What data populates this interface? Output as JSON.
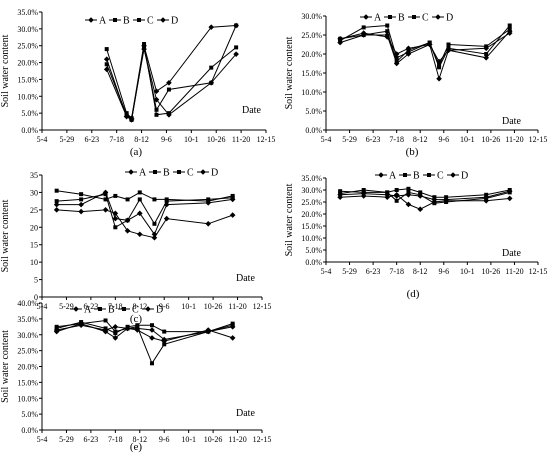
{
  "chart_data": [
    {
      "panel": "(a)",
      "type": "line",
      "ylabel": "Soil water content",
      "xlabel": "Date",
      "y_ticks": [
        "0.0%",
        "5.0%",
        "10.0%",
        "15.0%",
        "20.0%",
        "25.0%",
        "30.0%",
        "35.0%"
      ],
      "ylim": [
        0,
        35
      ],
      "x_ticks": [
        "5-4",
        "5-29",
        "6-23",
        "7-18",
        "8-12",
        "9-6",
        "10-1",
        "10-26",
        "11-20",
        "12-15"
      ],
      "xlim": [
        0,
        9
      ],
      "legend": [
        "A",
        "B",
        "C",
        "D"
      ],
      "series": [
        {
          "name": "A",
          "x": [
            2.6,
            3.4,
            3.6,
            4.1,
            4.6,
            5.1,
            6.8,
            7.8
          ],
          "y": [
            18,
            4,
            3.5,
            24,
            9,
            4.5,
            14,
            22.5
          ]
        },
        {
          "name": "B",
          "x": [
            2.6,
            3.4,
            3.6,
            4.1,
            4.6,
            5.1,
            6.8,
            7.8
          ],
          "y": [
            19.5,
            4.5,
            3,
            24.5,
            6,
            12,
            14,
            31
          ]
        },
        {
          "name": "C",
          "x": [
            2.6,
            3.4,
            3.6,
            4.1,
            4.6,
            5.1,
            6.8,
            7.8
          ],
          "y": [
            24,
            5,
            3.5,
            25.5,
            4.5,
            5,
            18.5,
            24.5
          ]
        },
        {
          "name": "D",
          "x": [
            2.6,
            3.4,
            3.6,
            4.1,
            4.6,
            5.1,
            6.8,
            7.8
          ],
          "y": [
            21,
            4,
            3,
            25,
            11.5,
            14,
            30.5,
            31
          ]
        }
      ]
    },
    {
      "panel": "(b)",
      "type": "line",
      "ylabel": "Soil water content",
      "xlabel": "Date",
      "y_ticks": [
        "0.0%",
        "5.0%",
        "10.0%",
        "15.0%",
        "20.0%",
        "25.0%",
        "30.0%"
      ],
      "ylim": [
        0,
        30
      ],
      "x_ticks": [
        "5-4",
        "5-29",
        "6-23",
        "7-18",
        "8-12",
        "9-6",
        "10-1",
        "10-26",
        "11-20",
        "12-15"
      ],
      "xlim": [
        0,
        9
      ],
      "legend": [
        "A",
        "B",
        "C",
        "D"
      ],
      "series": [
        {
          "name": "A",
          "x": [
            0.6,
            1.6,
            2.6,
            3.0,
            3.5,
            4.4,
            4.8,
            5.2,
            6.8,
            7.8
          ],
          "y": [
            23,
            25,
            25,
            17.5,
            20,
            22.5,
            13.5,
            21,
            19,
            26
          ]
        },
        {
          "name": "B",
          "x": [
            0.6,
            1.6,
            2.6,
            3.0,
            3.5,
            4.4,
            4.8,
            5.2,
            6.8,
            7.8
          ],
          "y": [
            23.5,
            27,
            27.5,
            19,
            20.5,
            23,
            16.5,
            21.5,
            20,
            27.5
          ]
        },
        {
          "name": "C",
          "x": [
            0.6,
            1.6,
            2.6,
            3.0,
            3.5,
            4.4,
            4.8,
            5.2,
            6.8,
            7.8
          ],
          "y": [
            24,
            25,
            26,
            18,
            21,
            23,
            17,
            22.5,
            22,
            26.5
          ]
        },
        {
          "name": "D",
          "x": [
            0.6,
            1.6,
            2.6,
            3.0,
            3.5,
            4.4,
            4.8,
            5.2,
            6.8,
            7.8
          ],
          "y": [
            24,
            25.5,
            24.5,
            20,
            21.5,
            22.5,
            18,
            21,
            21.5,
            25.5
          ]
        }
      ]
    },
    {
      "panel": "(c)",
      "type": "line",
      "ylabel": "Soil water content",
      "xlabel": "Date",
      "y_ticks": [
        "0",
        "5",
        "10",
        "15",
        "20",
        "25",
        "30",
        "35"
      ],
      "ylim": [
        0,
        35
      ],
      "x_ticks": [
        "5-4",
        "5-29",
        "6-23",
        "7-18",
        "8-12",
        "9-6",
        "10-1",
        "10-26",
        "11-20",
        "12-15"
      ],
      "xlim": [
        0,
        9
      ],
      "legend": [
        "A",
        "B",
        "C",
        "D"
      ],
      "series": [
        {
          "name": "A",
          "x": [
            0.6,
            1.6,
            2.6,
            3.0,
            3.5,
            4.0,
            4.6,
            5.1,
            6.8,
            7.8
          ],
          "y": [
            25,
            24.5,
            25,
            24,
            19,
            18,
            17,
            22.5,
            21,
            23.5
          ]
        },
        {
          "name": "B",
          "x": [
            0.6,
            1.6,
            2.6,
            3.0,
            3.5,
            4.0,
            4.6,
            5.1,
            6.8,
            7.8
          ],
          "y": [
            30.5,
            29.5,
            28,
            29,
            28,
            30,
            28,
            28,
            27.5,
            29
          ]
        },
        {
          "name": "C",
          "x": [
            0.6,
            1.6,
            2.6,
            3.0,
            3.5,
            4.0,
            4.6,
            5.1,
            6.8,
            7.8
          ],
          "y": [
            27.5,
            28,
            29.5,
            20,
            22,
            28,
            21,
            27.5,
            28,
            28.5
          ]
        },
        {
          "name": "D",
          "x": [
            0.6,
            1.6,
            2.6,
            3.0,
            3.5,
            4.0,
            4.6,
            5.1,
            6.8,
            7.8
          ],
          "y": [
            26.5,
            26.5,
            30,
            22.5,
            22,
            24,
            18,
            26.5,
            27,
            28
          ]
        }
      ]
    },
    {
      "panel": "(d)",
      "type": "line",
      "ylabel": "Soil water content",
      "xlabel": "Date",
      "y_ticks": [
        "0.0%",
        "5.0%",
        "10.0%",
        "15.0%",
        "20.0%",
        "25.0%",
        "30.0%",
        "35.0%"
      ],
      "ylim": [
        0,
        35
      ],
      "x_ticks": [
        "5-4",
        "5-29",
        "6-23",
        "7-18",
        "8-12",
        "9-6",
        "10-1",
        "10-26",
        "11-20",
        "12-15"
      ],
      "xlim": [
        0,
        9
      ],
      "legend": [
        "A",
        "B",
        "C",
        "D"
      ],
      "series": [
        {
          "name": "A",
          "x": [
            0.6,
            1.6,
            2.6,
            3.0,
            3.5,
            4.0,
            4.6,
            5.1,
            6.8,
            7.8
          ],
          "y": [
            27,
            27.5,
            27,
            28,
            24,
            22,
            25,
            25.5,
            25.5,
            26.5
          ]
        },
        {
          "name": "B",
          "x": [
            0.6,
            1.6,
            2.6,
            3.0,
            3.5,
            4.0,
            4.6,
            5.1,
            6.8,
            7.8
          ],
          "y": [
            29.5,
            29,
            29,
            30,
            30.5,
            29,
            27,
            27,
            28,
            30
          ]
        },
        {
          "name": "C",
          "x": [
            0.6,
            1.6,
            2.6,
            3.0,
            3.5,
            4.0,
            4.6,
            5.1,
            6.8,
            7.8
          ],
          "y": [
            28.5,
            30,
            29,
            25.5,
            29,
            28,
            24.5,
            25,
            26.5,
            29
          ]
        },
        {
          "name": "D",
          "x": [
            0.6,
            1.6,
            2.6,
            3.0,
            3.5,
            4.0,
            4.6,
            5.1,
            6.8,
            7.8
          ],
          "y": [
            28,
            28.5,
            28,
            27.5,
            28,
            27.5,
            26,
            26,
            27,
            29.5
          ]
        }
      ]
    },
    {
      "panel": "(e)",
      "type": "line",
      "ylabel": "Soil water content",
      "xlabel": "Date",
      "y_ticks": [
        "0.0%",
        "5.0%",
        "10.0%",
        "15.0%",
        "20.0%",
        "25.0%",
        "30.0%",
        "35.0%",
        "40.0%"
      ],
      "ylim": [
        0,
        40
      ],
      "x_ticks": [
        "5-4",
        "5-29",
        "6-23",
        "7-18",
        "8-12",
        "9-6",
        "10-1",
        "10-26",
        "11-20",
        "12-15"
      ],
      "xlim": [
        0,
        9
      ],
      "legend": [
        "A",
        "B",
        "C",
        "D"
      ],
      "series": [
        {
          "name": "A",
          "x": [
            0.6,
            1.6,
            2.6,
            3.0,
            3.5,
            3.9,
            4.5,
            5.0,
            6.8,
            7.8
          ],
          "y": [
            31,
            33.5,
            31,
            29,
            32,
            31.5,
            29,
            28,
            31.5,
            29
          ]
        },
        {
          "name": "B",
          "x": [
            0.6,
            1.6,
            2.6,
            3.0,
            3.5,
            3.9,
            4.5,
            5.0,
            6.8,
            7.8
          ],
          "y": [
            32,
            34,
            32,
            30.5,
            32.5,
            33,
            33,
            31,
            31,
            33.5
          ]
        },
        {
          "name": "C",
          "x": [
            0.6,
            1.6,
            2.6,
            3.0,
            3.5,
            3.9,
            4.5,
            5.0,
            6.8,
            7.8
          ],
          "y": [
            32.5,
            33.5,
            34.5,
            31,
            32,
            32.5,
            21,
            27,
            31,
            33
          ]
        },
        {
          "name": "D",
          "x": [
            0.6,
            1.6,
            2.6,
            3.0,
            3.5,
            3.9,
            4.5,
            5.0,
            6.8,
            7.8
          ],
          "y": [
            31.5,
            33,
            31.5,
            32.5,
            32,
            32,
            31.5,
            28.5,
            31,
            32.5
          ]
        }
      ]
    }
  ]
}
